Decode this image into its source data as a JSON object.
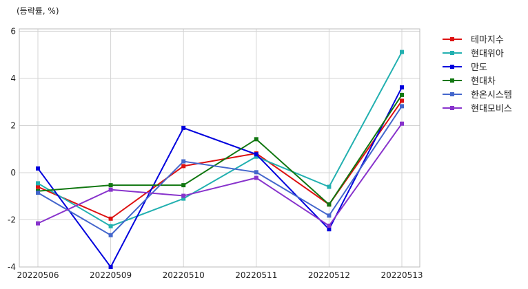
{
  "chart_data": {
    "type": "line",
    "unit_label": "(등락률, %)",
    "categories": [
      "20220506",
      "20220509",
      "20220510",
      "20220511",
      "20220512",
      "20220513"
    ],
    "ylim": [
      -4,
      6.1
    ],
    "yticks": [
      -4,
      -2,
      0,
      2,
      4,
      6
    ],
    "grid": true,
    "legend_position": "right",
    "series": [
      {
        "name": "테마지수",
        "color": "#dd1111",
        "values": [
          -0.6,
          -1.95,
          0.28,
          0.82,
          -1.35,
          3.05
        ]
      },
      {
        "name": "현대위아",
        "color": "#22b0b0",
        "values": [
          -0.45,
          -2.27,
          -1.1,
          0.68,
          -0.6,
          5.12
        ]
      },
      {
        "name": "만도",
        "color": "#0000dd",
        "values": [
          0.18,
          -4.0,
          1.9,
          0.78,
          -2.4,
          3.62
        ]
      },
      {
        "name": "현대차",
        "color": "#117711",
        "values": [
          -0.78,
          -0.53,
          -0.53,
          1.42,
          -1.35,
          3.3
        ]
      },
      {
        "name": "한온시스템",
        "color": "#4466cc",
        "values": [
          -0.85,
          -2.65,
          0.48,
          0.02,
          -1.82,
          2.82
        ]
      },
      {
        "name": "현대모비스",
        "color": "#8833cc",
        "values": [
          -2.15,
          -0.72,
          -0.98,
          -0.22,
          -2.25,
          2.08
        ]
      }
    ]
  }
}
